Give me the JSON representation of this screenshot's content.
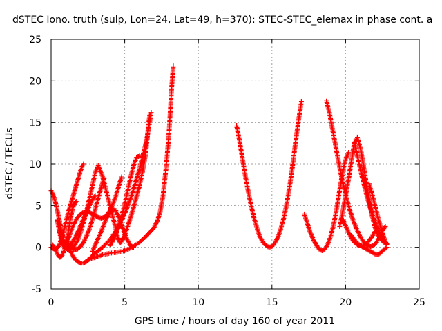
{
  "chart_data": {
    "type": "scatter",
    "title": "dSTEC Iono. truth (sulp, Lon=24, Lat=49, h=370): STEC-STEC_elemax in phase cont. a",
    "xlabel": "GPS time / hours of day 160 of year 2011",
    "ylabel": "dSTEC  / TECUs",
    "xlim": [
      0,
      25
    ],
    "ylim": [
      -5,
      25
    ],
    "xticks": [
      0,
      5,
      10,
      15,
      20,
      25
    ],
    "yticks": [
      -5,
      0,
      5,
      10,
      15,
      20,
      25
    ],
    "grid": true,
    "marker": "plus",
    "color": "#ff0000",
    "series": [
      {
        "x": [
          0.0,
          0.1,
          0.2,
          0.3,
          0.4,
          0.5,
          0.6,
          0.7,
          0.8,
          0.9,
          1.0,
          1.1,
          1.2,
          1.3
        ],
        "y": [
          6.8,
          6.5,
          6.0,
          5.4,
          4.6,
          3.8,
          2.9,
          2.0,
          1.2,
          0.5,
          0.0,
          -0.3,
          -0.2,
          0.2
        ]
      },
      {
        "x": [
          0.0,
          0.1,
          0.2,
          0.3,
          0.4,
          0.5,
          0.6,
          0.7,
          0.8,
          0.9,
          1.0,
          1.1,
          1.2,
          1.3,
          1.4,
          1.5,
          1.6,
          1.7,
          1.8,
          1.9,
          2.0,
          2.1,
          2.2
        ],
        "y": [
          0.0,
          -0.1,
          -0.2,
          -0.2,
          -0.1,
          0.1,
          0.5,
          1.0,
          1.6,
          2.3,
          3.0,
          3.7,
          4.4,
          5.0,
          5.6,
          6.2,
          6.8,
          7.4,
          8.0,
          8.6,
          9.2,
          9.7,
          10.0
        ]
      },
      {
        "x": [
          0.1,
          0.2,
          0.3,
          0.4,
          0.5,
          0.6,
          0.7,
          0.8,
          0.9,
          1.0,
          1.2,
          1.4,
          1.6,
          1.8,
          2.0,
          2.2,
          2.4,
          2.6,
          2.8,
          3.0,
          3.2,
          3.4,
          3.6,
          3.8,
          4.0,
          4.2,
          4.4,
          4.6,
          4.8
        ],
        "y": [
          0.3,
          0.0,
          -0.3,
          -0.7,
          -1.0,
          -1.2,
          -1.1,
          -0.8,
          -0.3,
          0.3,
          1.2,
          2.2,
          3.0,
          3.6,
          4.0,
          4.2,
          4.3,
          4.2,
          4.0,
          3.8,
          3.6,
          3.5,
          3.6,
          3.9,
          4.4,
          5.2,
          6.2,
          7.4,
          8.5
        ]
      },
      {
        "x": [
          0.4,
          0.5,
          0.6,
          0.7,
          0.8,
          0.9,
          1.0,
          1.1,
          1.2,
          1.3,
          1.4,
          1.5,
          1.6,
          1.7
        ],
        "y": [
          3.4,
          2.5,
          1.6,
          0.8,
          0.3,
          0.1,
          0.4,
          1.2,
          2.2,
          3.3,
          4.2,
          4.9,
          5.3,
          5.5
        ]
      },
      {
        "x": [
          0.6,
          0.7,
          0.8,
          0.9,
          1.0,
          1.1,
          1.2,
          1.3,
          1.4,
          1.5,
          1.6,
          1.7,
          1.8,
          1.9,
          2.0,
          2.2,
          2.4,
          2.6,
          2.8,
          3.0
        ],
        "y": [
          2.0,
          1.2,
          0.6,
          0.2,
          0.0,
          0.0,
          0.1,
          0.3,
          0.5,
          0.8,
          1.1,
          1.4,
          1.8,
          2.2,
          2.6,
          3.4,
          4.2,
          5.0,
          5.7,
          6.2
        ]
      },
      {
        "x": [
          1.0,
          1.2,
          1.4,
          1.6,
          1.8,
          2.0,
          2.2,
          2.4,
          2.6,
          2.8,
          3.0,
          3.2,
          3.4,
          3.6
        ],
        "y": [
          1.0,
          0.4,
          -0.1,
          -0.3,
          -0.2,
          0.1,
          0.6,
          1.3,
          2.2,
          3.3,
          4.6,
          5.9,
          7.2,
          8.3
        ]
      },
      {
        "x": [
          1.2,
          1.4,
          1.6,
          1.8,
          2.0,
          2.2,
          2.4,
          2.6,
          2.8,
          3.0,
          3.5,
          4.0,
          4.5,
          5.0,
          5.5,
          6.0,
          6.5,
          6.8
        ],
        "y": [
          0.0,
          -0.8,
          -1.4,
          -1.7,
          -1.9,
          -1.9,
          -1.7,
          -1.4,
          -1.0,
          -0.7,
          0.0,
          0.9,
          2.2,
          4.0,
          6.4,
          9.4,
          13.0,
          16.2
        ]
      },
      {
        "x": [
          1.5,
          1.8,
          2.0,
          2.2,
          2.4,
          2.6,
          2.8,
          3.0,
          3.2,
          3.5,
          3.8,
          4.0,
          4.2,
          4.4,
          4.5,
          4.6,
          4.7,
          4.8,
          5.0,
          5.2,
          5.4,
          5.6,
          5.8,
          6.0,
          6.2,
          6.4,
          6.5,
          6.6,
          6.7
        ],
        "y": [
          0.0,
          0.8,
          1.8,
          3.0,
          4.3,
          5.8,
          7.4,
          9.0,
          9.8,
          8.5,
          6.4,
          5.0,
          3.6,
          2.2,
          1.4,
          0.8,
          0.5,
          0.8,
          1.5,
          2.5,
          3.6,
          4.8,
          6.1,
          7.4,
          9.0,
          11.0,
          12.6,
          14.4,
          16.0
        ]
      },
      {
        "x": [
          2.5,
          3.0,
          3.5,
          4.0,
          4.5,
          5.0,
          5.5,
          6.0,
          6.5,
          7.0,
          7.2,
          7.4,
          7.6,
          7.8,
          8.0,
          8.1,
          8.2,
          8.3
        ],
        "y": [
          -1.5,
          -1.2,
          -0.9,
          -0.7,
          -0.6,
          -0.4,
          0.0,
          0.6,
          1.4,
          2.4,
          3.1,
          4.2,
          6.2,
          9.4,
          13.5,
          16.5,
          19.5,
          21.8
        ]
      },
      {
        "x": [
          2.8,
          3.0,
          3.2,
          3.4,
          3.6,
          3.8,
          4.0,
          4.2,
          4.4,
          4.6,
          4.8,
          5.0,
          5.2,
          5.4,
          5.6
        ],
        "y": [
          -0.5,
          0.3,
          1.1,
          1.9,
          2.8,
          3.6,
          4.2,
          4.6,
          4.4,
          3.6,
          2.6,
          1.6,
          0.8,
          0.2,
          0.0
        ]
      },
      {
        "x": [
          4.0,
          4.2,
          4.4,
          4.6,
          4.8,
          5.0,
          5.2,
          5.4,
          5.6,
          5.8,
          6.0
        ],
        "y": [
          0.2,
          0.8,
          1.6,
          2.6,
          3.8,
          5.2,
          6.8,
          8.4,
          9.8,
          10.8,
          11.0
        ]
      },
      {
        "x": [
          12.6,
          12.8,
          13.0,
          13.2,
          13.4,
          13.6,
          13.8,
          14.0,
          14.2,
          14.4,
          14.6,
          14.8,
          15.0,
          15.2,
          15.4,
          15.6,
          15.8,
          16.0,
          16.2,
          16.4,
          16.6,
          16.8,
          17.0
        ],
        "y": [
          14.6,
          12.8,
          10.6,
          8.5,
          6.6,
          4.9,
          3.4,
          2.2,
          1.2,
          0.6,
          0.2,
          0.0,
          0.1,
          0.5,
          1.2,
          2.2,
          3.5,
          5.2,
          7.3,
          9.8,
          12.6,
          15.2,
          17.5
        ]
      },
      {
        "x": [
          17.2,
          17.4,
          17.6,
          17.8,
          18.0,
          18.2,
          18.4,
          18.6,
          18.8,
          19.0,
          19.2,
          19.4,
          19.6,
          19.8,
          20.0,
          20.2
        ],
        "y": [
          4.0,
          2.9,
          1.8,
          1.0,
          0.3,
          -0.2,
          -0.4,
          -0.2,
          0.4,
          1.4,
          2.8,
          4.7,
          6.9,
          9.0,
          10.6,
          11.4
        ]
      },
      {
        "x": [
          18.7,
          18.9,
          19.1,
          19.3,
          19.5,
          19.7,
          19.9,
          20.1,
          20.3,
          20.5,
          20.7,
          20.9,
          21.1,
          21.3,
          21.5,
          21.7,
          21.9,
          22.1,
          22.3,
          22.5,
          22.7
        ],
        "y": [
          17.6,
          16.2,
          14.3,
          12.4,
          10.5,
          8.7,
          7.1,
          5.7,
          4.4,
          3.3,
          2.4,
          1.6,
          1.0,
          0.5,
          0.2,
          0.1,
          0.2,
          0.6,
          1.2,
          2.0,
          2.5
        ]
      },
      {
        "x": [
          19.6,
          19.8,
          20.0,
          20.2,
          20.4,
          20.6,
          20.8,
          21.0,
          21.2,
          21.4,
          21.6,
          21.8,
          22.0,
          22.2,
          22.4,
          22.6,
          22.8
        ],
        "y": [
          2.5,
          4.2,
          6.2,
          8.2,
          10.4,
          12.6,
          13.2,
          12.0,
          10.0,
          7.8,
          5.6,
          3.8,
          2.4,
          1.4,
          0.9,
          0.6,
          0.5
        ]
      },
      {
        "x": [
          20.6,
          20.8,
          21.0,
          21.2,
          21.4,
          21.6,
          21.8,
          22.0,
          22.2,
          22.4,
          22.6,
          22.8
        ],
        "y": [
          12.6,
          11.0,
          9.4,
          7.9,
          6.5,
          5.2,
          4.0,
          3.0,
          2.1,
          1.4,
          0.8,
          0.4
        ]
      },
      {
        "x": [
          19.8,
          20.0,
          20.2,
          20.4,
          20.6,
          20.8,
          21.0,
          21.2,
          21.4,
          21.6,
          21.8,
          22.0
        ],
        "y": [
          3.4,
          2.6,
          1.8,
          1.1,
          0.6,
          0.3,
          0.2,
          0.2,
          0.4,
          0.8,
          1.3,
          1.9
        ]
      },
      {
        "x": [
          20.4,
          20.6,
          20.8,
          21.0,
          21.2,
          21.4,
          21.6,
          21.8,
          22.0,
          22.2,
          22.4,
          22.6,
          22.8
        ],
        "y": [
          1.4,
          0.9,
          0.5,
          0.2,
          0.0,
          -0.2,
          -0.4,
          -0.6,
          -0.8,
          -0.9,
          -0.6,
          -0.3,
          0.0
        ]
      },
      {
        "x": [
          21.6,
          21.8,
          22.0,
          22.2,
          22.4,
          22.6,
          22.8
        ],
        "y": [
          7.6,
          6.4,
          5.0,
          3.6,
          2.3,
          1.2,
          0.3
        ]
      }
    ]
  }
}
